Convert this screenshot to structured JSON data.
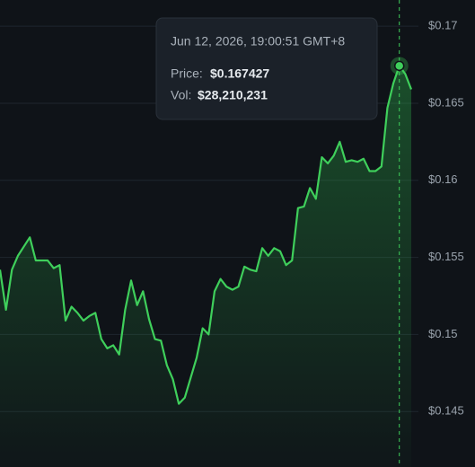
{
  "chart_data": {
    "type": "line",
    "series": [
      {
        "name": null,
        "color": "#3fcf5b",
        "values": [
          0.1542,
          0.1516,
          0.1542,
          0.1551,
          0.1557,
          0.1563,
          0.1548,
          0.1548,
          0.1548,
          0.1543,
          0.1545,
          0.1509,
          0.1518,
          0.1514,
          0.1509,
          0.1512,
          0.1514,
          0.1497,
          0.1491,
          0.1493,
          0.1487,
          0.1516,
          0.1535,
          0.1519,
          0.1528,
          0.151,
          0.1497,
          0.1496,
          0.148,
          0.1471,
          0.1455,
          0.1459,
          0.1472,
          0.1485,
          0.1504,
          0.15,
          0.1528,
          0.1536,
          0.1531,
          0.1529,
          0.1531,
          0.1544,
          0.1542,
          0.1541,
          0.1556,
          0.1551,
          0.1556,
          0.1554,
          0.1545,
          0.1548,
          0.1582,
          0.1583,
          0.1595,
          0.1588,
          0.1615,
          0.1611,
          0.1616,
          0.1625,
          0.1612,
          0.1613,
          0.1612,
          0.1614,
          0.1606,
          0.1606,
          0.1609,
          0.1647,
          0.1663,
          0.167427,
          0.1669,
          0.1659
        ]
      }
    ],
    "ylim": [
      0.1414,
      0.1717
    ],
    "yticks": [
      {
        "value": 0.17,
        "label": "$0.17"
      },
      {
        "value": 0.165,
        "label": "$0.165"
      },
      {
        "value": 0.16,
        "label": "$0.16"
      },
      {
        "value": 0.155,
        "label": "$0.155"
      },
      {
        "value": 0.15,
        "label": "$0.15"
      },
      {
        "value": 0.145,
        "label": "$0.145"
      }
    ],
    "grid": true,
    "tooltip": {
      "time": "Jun 12, 2026, 19:00:51 GMT+8",
      "price_label": "Price:",
      "price": {
        "value": 0.167427,
        "label": "$0.167427"
      },
      "vol_label": "Vol:",
      "vol": {
        "value": 28210231,
        "label": "$28,210,231"
      }
    }
  }
}
